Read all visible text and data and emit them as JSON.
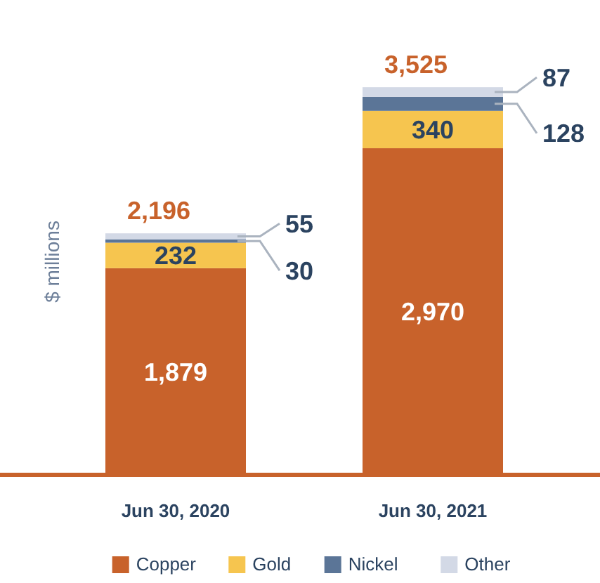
{
  "chart_data": {
    "type": "bar",
    "stacked": true,
    "ylabel": "$ millions",
    "categories": [
      "Jun 30, 2020",
      "Jun 30, 2021"
    ],
    "series": [
      {
        "name": "Copper",
        "color": "#c8622b",
        "values": [
          1879,
          2970
        ],
        "value_labels": [
          "1,879",
          "2,970"
        ]
      },
      {
        "name": "Gold",
        "color": "#f6c54f",
        "values": [
          232,
          340
        ],
        "value_labels": [
          "232",
          "340"
        ]
      },
      {
        "name": "Nickel",
        "color": "#5b7597",
        "values": [
          30,
          128
        ],
        "value_labels": [
          "30",
          "128"
        ]
      },
      {
        "name": "Other",
        "color": "#d3d9e6",
        "values": [
          55,
          87
        ],
        "value_labels": [
          "55",
          "87"
        ]
      }
    ],
    "totals": [
      "2,196",
      "3,525"
    ],
    "legend": "bottom",
    "grid": false
  }
}
